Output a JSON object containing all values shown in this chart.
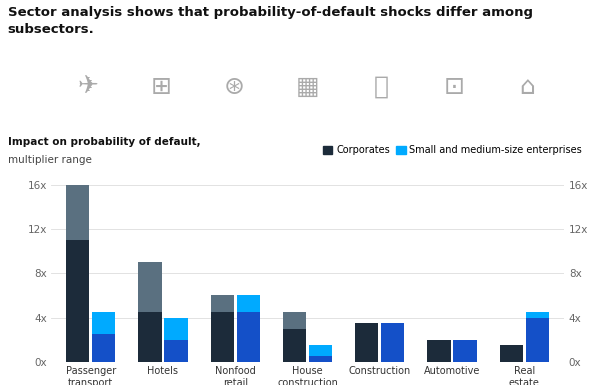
{
  "title_line1": "Sector analysis shows that probability-of-default shocks differ among",
  "title_line2": "subsectors.",
  "ylabel_bold": "Impact on probability of default,",
  "ylabel_normal": "multiplier range",
  "categories": [
    "Passenger\ntransport",
    "Hotels",
    "Nonfood\nretail",
    "House\nconstruction",
    "Construction",
    "Automotive",
    "Real\nestate"
  ],
  "corp_bottom": [
    11.0,
    4.5,
    4.5,
    3.0,
    3.5,
    2.0,
    1.5
  ],
  "corp_top": [
    5.0,
    4.5,
    1.5,
    1.5,
    0.0,
    0.0,
    0.0
  ],
  "sme_bottom": [
    2.5,
    2.0,
    4.5,
    0.5,
    3.5,
    2.0,
    4.0
  ],
  "sme_top": [
    2.0,
    2.0,
    1.5,
    1.0,
    0.0,
    0.0,
    0.5
  ],
  "corp_dark": "#1c2b3a",
  "corp_mid": "#5a7080",
  "sme_dark": "#1450c8",
  "sme_light": "#00aaff",
  "ylim": [
    0,
    16
  ],
  "yticks": [
    0,
    4,
    8,
    12,
    16
  ],
  "ytick_labels": [
    "0x",
    "4x",
    "8x",
    "12x",
    "16x"
  ],
  "legend_corp": "Corporates",
  "legend_sme": "Small and medium-size enterprises",
  "bar_width": 0.32
}
